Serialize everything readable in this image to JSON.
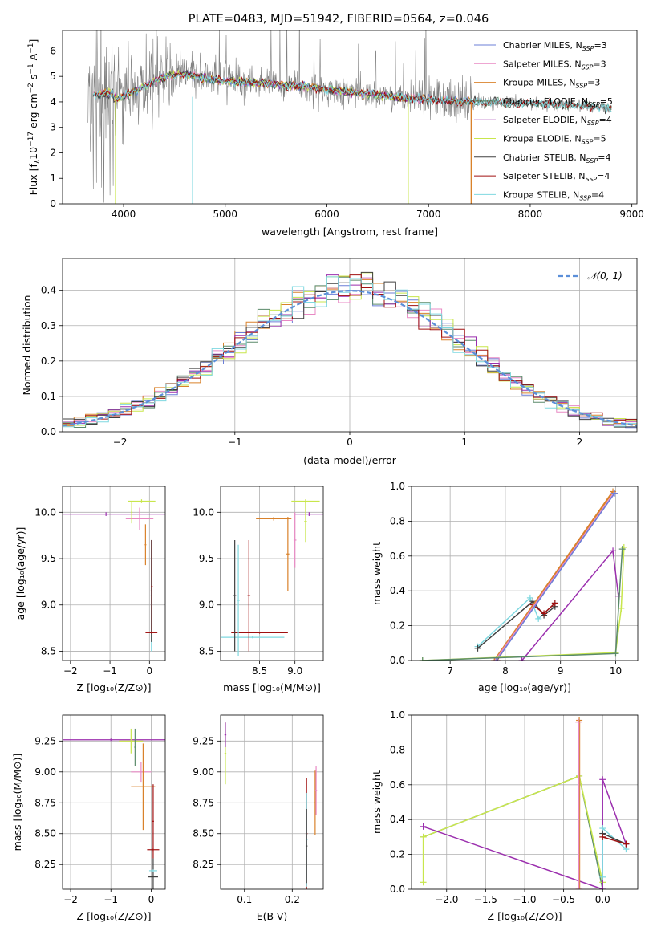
{
  "title": "PLATE=0483, MJD=51942, FIBERID=0564, z=0.046",
  "colors": {
    "chabrier_miles": "#6b7fd7",
    "salpeter_miles": "#e889c4",
    "kroupa_miles": "#d9822b",
    "chabrier_elodie": "#5a8a6a",
    "salpeter_elodie": "#9b2fae",
    "kroupa_elodie": "#c8e64c",
    "chabrier_stelib": "#404040",
    "salpeter_stelib": "#a01010",
    "kroupa_stelib": "#7fd8e0",
    "data": "#808080",
    "grid": "#b0b0b0"
  },
  "chart_data": [
    {
      "type": "line",
      "xlabel": "wavelength [Angstrom, rest frame]",
      "ylabel": "Flux [fλ10⁻¹⁷ erg cm⁻² s⁻¹ A⁻¹]",
      "xlim": [
        3400,
        9050
      ],
      "ylim": [
        0,
        6.8
      ],
      "xticks": [
        "4000",
        "5000",
        "6000",
        "7000",
        "8000",
        "9000"
      ],
      "yticks": [
        "0",
        "1",
        "2",
        "3",
        "4",
        "5",
        "6"
      ],
      "legend_position": "right",
      "legend": [
        {
          "name": "Chabrier MILES, N",
          "sub": "SSP",
          "tail": "=3"
        },
        {
          "name": "Salpeter MILES, N",
          "sub": "SSP",
          "tail": "=3"
        },
        {
          "name": "Kroupa MILES, N",
          "sub": "SSP",
          "tail": "=3"
        },
        {
          "name": "Chabrier ELODIE, N",
          "sub": "SSP",
          "tail": "=5"
        },
        {
          "name": "Salpeter ELODIE, N",
          "sub": "SSP",
          "tail": "=4"
        },
        {
          "name": "Kroupa ELODIE, N",
          "sub": "SSP",
          "tail": "=5"
        },
        {
          "name": "Chabrier STELIB, N",
          "sub": "SSP",
          "tail": "=4"
        },
        {
          "name": "Salpeter STELIB, N",
          "sub": "SSP",
          "tail": "=4"
        },
        {
          "name": "Kroupa STELIB, N",
          "sub": "SSP",
          "tail": "=4"
        }
      ],
      "continuum": [
        [
          3650,
          4.1
        ],
        [
          3800,
          4.1
        ],
        [
          4000,
          4.2
        ],
        [
          4200,
          4.6
        ],
        [
          4400,
          5.0
        ],
        [
          4600,
          5.1
        ],
        [
          4900,
          4.85
        ],
        [
          5300,
          4.75
        ],
        [
          5800,
          4.6
        ],
        [
          6300,
          4.35
        ],
        [
          6800,
          4.15
        ],
        [
          7200,
          4.05
        ],
        [
          7600,
          3.98
        ],
        [
          8000,
          3.95
        ],
        [
          8500,
          3.85
        ],
        [
          8800,
          3.75
        ]
      ]
    },
    {
      "type": "histogram",
      "xlabel": "(data-model)/error",
      "ylabel": "Normed distribution",
      "xlim": [
        -2.5,
        2.5
      ],
      "ylim": [
        0,
        0.49
      ],
      "xticks": [
        "−2",
        "−1",
        "0",
        "1",
        "2"
      ],
      "yticks": [
        "0.0",
        "0.1",
        "0.2",
        "0.3",
        "0.4"
      ],
      "bin_width": 0.1,
      "legend": "𝒩(0, 1)",
      "legend_position": "top-right"
    },
    {
      "type": "scatter",
      "xlabel": "Z [log₁₀(Z/Z⊙)]",
      "ylabel": "age  [log₁₀(age/yr)]",
      "xlim": [
        -2.2,
        0.4
      ],
      "ylim": [
        8.4,
        10.28
      ],
      "xticks": [
        "−2",
        "−1",
        "0"
      ],
      "yticks": [
        "8.5",
        "9.0",
        "9.5",
        "10.0"
      ]
    },
    {
      "type": "scatter",
      "xlabel": "mass [log₁₀(M/M⊙)]",
      "ylabel": "",
      "xlim": [
        7.95,
        9.4
      ],
      "ylim": [
        8.4,
        10.28
      ],
      "xticks": [
        "8.5",
        "9.0"
      ],
      "yticks": [
        "8.5",
        "9.0",
        "9.5",
        "10.0"
      ]
    },
    {
      "type": "line",
      "xlabel": "age  [log₁₀(age/yr)]",
      "ylabel": "mass weight",
      "xlim": [
        6.3,
        10.4
      ],
      "ylim": [
        0,
        1.0
      ],
      "xticks": [
        "7",
        "8",
        "9",
        "10"
      ],
      "yticks": [
        "0.0",
        "0.2",
        "0.4",
        "0.6",
        "0.8",
        "1.0"
      ]
    },
    {
      "type": "scatter",
      "xlabel": "Z [log₁₀(Z/Z⊙)]",
      "ylabel": "mass [log₁₀(M/M⊙)]",
      "xlim": [
        -2.2,
        0.35
      ],
      "ylim": [
        8.05,
        9.46
      ],
      "xticks": [
        "−2",
        "−1",
        "0"
      ],
      "yticks": [
        "8.25",
        "8.50",
        "8.75",
        "9.00",
        "9.25"
      ]
    },
    {
      "type": "scatter",
      "xlabel": "E(B-V)",
      "ylabel": "",
      "xlim": [
        0.05,
        0.265
      ],
      "ylim": [
        8.05,
        9.46
      ],
      "xticks": [
        "0.1",
        "0.2"
      ],
      "yticks": [
        "8.25",
        "8.50",
        "8.75",
        "9.00",
        "9.25"
      ]
    },
    {
      "type": "line",
      "xlabel": "Z [log₁₀(Z/Z⊙)]",
      "ylabel": "mass weight",
      "xlim": [
        -2.45,
        0.45
      ],
      "ylim": [
        0,
        1.0
      ],
      "xticks": [
        "−2.0",
        "−1.5",
        "−1.0",
        "−0.5",
        "0.0"
      ],
      "yticks": [
        "0.0",
        "0.2",
        "0.4",
        "0.6",
        "0.8",
        "1.0"
      ]
    }
  ],
  "weights": {
    "age_panel": [
      {
        "c": "kroupa_stelib",
        "pts": [
          [
            7.5,
            0.08
          ],
          [
            8.45,
            0.36
          ],
          [
            8.6,
            0.24
          ],
          [
            8.9,
            0.33
          ]
        ]
      },
      {
        "c": "chabrier_stelib",
        "pts": [
          [
            7.5,
            0.07
          ],
          [
            8.5,
            0.34
          ],
          [
            8.7,
            0.26
          ],
          [
            8.9,
            0.31
          ]
        ]
      },
      {
        "c": "salpeter_stelib",
        "pts": [
          [
            7.85,
            0.0
          ],
          [
            8.5,
            0.32
          ],
          [
            8.7,
            0.27
          ],
          [
            8.9,
            0.33
          ]
        ]
      },
      {
        "c": "kroupa_miles",
        "pts": [
          [
            7.8,
            0.0
          ],
          [
            9.95,
            0.97
          ]
        ]
      },
      {
        "c": "salpeter_miles",
        "pts": [
          [
            7.82,
            0.0
          ],
          [
            9.97,
            0.96
          ]
        ]
      },
      {
        "c": "chabrier_miles",
        "pts": [
          [
            7.84,
            0.0
          ],
          [
            9.98,
            0.96
          ]
        ]
      },
      {
        "c": "salpeter_elodie",
        "pts": [
          [
            8.3,
            0.0
          ],
          [
            9.95,
            0.63
          ],
          [
            10.05,
            0.37
          ]
        ]
      },
      {
        "c": "kroupa_elodie",
        "pts": [
          [
            6.5,
            0.0
          ],
          [
            10.0,
            0.045
          ],
          [
            10.1,
            0.3
          ],
          [
            10.15,
            0.65
          ]
        ]
      },
      {
        "c": "chabrier_elodie",
        "pts": [
          [
            6.5,
            0.0
          ],
          [
            10.0,
            0.04
          ],
          [
            10.12,
            0.64
          ]
        ]
      }
    ],
    "z_panel": [
      {
        "c": "chabrier_elodie",
        "pts": [
          [
            -2.3,
            0.3
          ],
          [
            -0.3,
            0.65
          ],
          [
            0.0,
            0.0
          ]
        ]
      },
      {
        "c": "kroupa_elodie",
        "pts": [
          [
            -2.3,
            0.04
          ],
          [
            -2.3,
            0.3
          ],
          [
            -0.3,
            0.65
          ],
          [
            0.0,
            0.04
          ]
        ]
      },
      {
        "c": "salpeter_elodie",
        "pts": [
          [
            -2.3,
            0.36
          ],
          [
            0.0,
            0.0
          ],
          [
            0.0,
            0.63
          ],
          [
            0.3,
            0.26
          ]
        ]
      },
      {
        "c": "kroupa_miles",
        "pts": [
          [
            -0.3,
            0.0
          ],
          [
            -0.3,
            0.97
          ]
        ]
      },
      {
        "c": "salpeter_miles",
        "pts": [
          [
            -0.31,
            0.0
          ],
          [
            -0.31,
            0.96
          ]
        ]
      },
      {
        "c": "kroupa_stelib",
        "pts": [
          [
            0.0,
            0.07
          ],
          [
            0.0,
            0.35
          ],
          [
            0.3,
            0.23
          ]
        ]
      },
      {
        "c": "chabrier_stelib",
        "pts": [
          [
            0.0,
            0.32
          ],
          [
            0.3,
            0.26
          ]
        ]
      },
      {
        "c": "salpeter_stelib",
        "pts": [
          [
            0.0,
            0.3
          ],
          [
            0.3,
            0.26
          ]
        ]
      }
    ]
  }
}
